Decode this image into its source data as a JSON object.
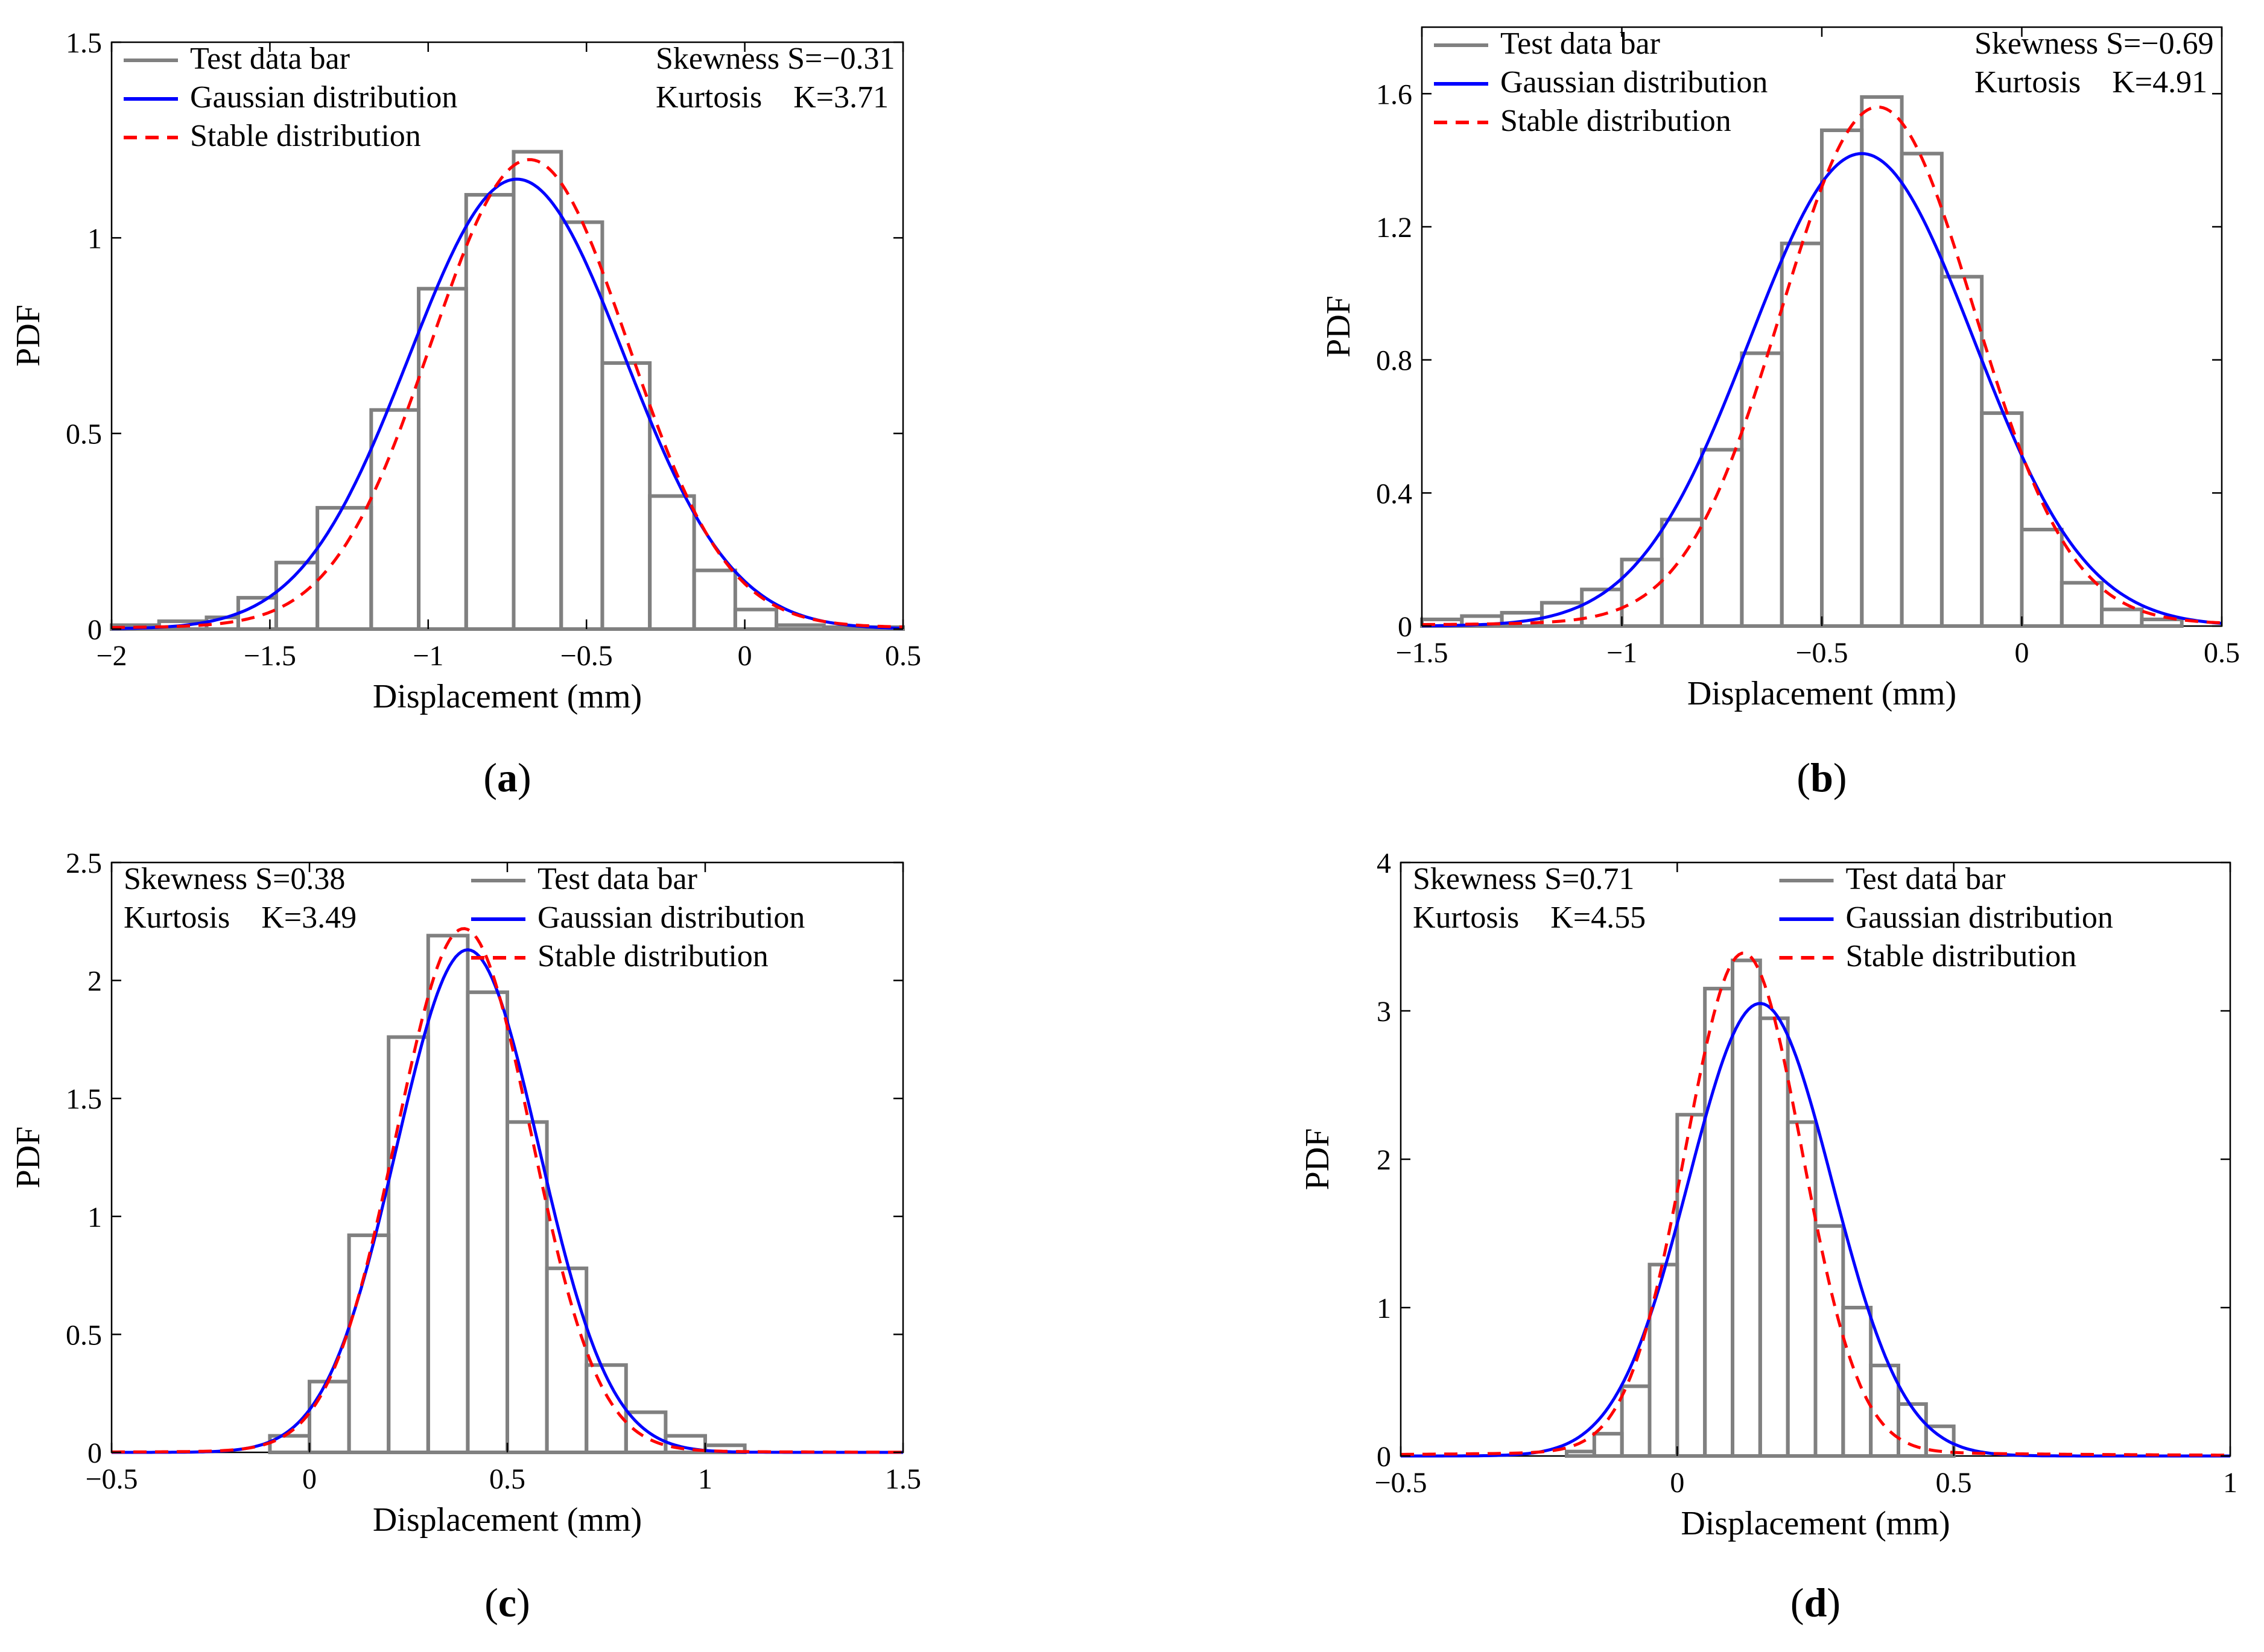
{
  "colors": {
    "bar": "#808080",
    "gaussian": "#0000ff",
    "stable": "#ff0000",
    "axis": "#000000",
    "grid": "#dddddd"
  },
  "chart_data": [
    {
      "id": "a",
      "caption_letter": "a",
      "type": "bar",
      "xlabel": "Displacement (mm)",
      "ylabel": "PDF",
      "xlim": [
        -2,
        0.5
      ],
      "ylim": [
        0,
        1.5
      ],
      "xticks": [
        -2,
        -1.5,
        -1,
        -0.5,
        0,
        0.5
      ],
      "xtick_labels": [
        "−2",
        "−1.5",
        "−1",
        "−0.5",
        "0",
        "0.5"
      ],
      "yticks": [
        0,
        0.5,
        1,
        1.5
      ],
      "ytick_labels": [
        "0",
        "0.5",
        "1",
        "1.5"
      ],
      "legend": {
        "entries": [
          "Test data bar",
          "Gaussian distribution",
          "Stable distribution"
        ],
        "position": "top-left"
      },
      "annotation": {
        "position": "top-right",
        "lines": [
          "Skewness S=−0.31",
          "Kurtosis K=3.71"
        ]
      },
      "bins": {
        "edges": [
          -2.0,
          -1.85,
          -1.7,
          -1.6,
          -1.48,
          -1.35,
          -1.18,
          -1.03,
          -0.88,
          -0.73,
          -0.58,
          -0.45,
          -0.3,
          -0.16,
          -0.03,
          0.1,
          0.25,
          0.5
        ],
        "heights": [
          0.01,
          0.02,
          0.03,
          0.08,
          0.17,
          0.31,
          0.56,
          0.87,
          1.11,
          1.22,
          1.04,
          0.68,
          0.34,
          0.15,
          0.05,
          0.01,
          0.005
        ]
      },
      "series": [
        {
          "name": "Gaussian distribution",
          "kind": "gaussian",
          "mean": -0.72,
          "sd": 0.34,
          "amp": 1.15
        },
        {
          "name": "Stable distribution",
          "kind": "stable",
          "mean": -0.68,
          "sd": 0.31,
          "amp": 1.2,
          "tail": 0.02,
          "tail_scale": 0.8
        }
      ]
    },
    {
      "id": "b",
      "caption_letter": "b",
      "type": "bar",
      "xlabel": "Displacement (mm)",
      "ylabel": "PDF",
      "xlim": [
        -1.5,
        0.5
      ],
      "ylim": [
        0,
        1.8
      ],
      "xticks": [
        -1.5,
        -1,
        -0.5,
        0,
        0.5
      ],
      "xtick_labels": [
        "−1.5",
        "−1",
        "−0.5",
        "0",
        "0.5"
      ],
      "yticks": [
        0,
        0.4,
        0.8,
        1.2,
        1.6
      ],
      "ytick_labels": [
        "0",
        "0.4",
        "0.8",
        "1.2",
        "1.6"
      ],
      "legend": {
        "entries": [
          "Test data bar",
          "Gaussian distribution",
          "Stable distribution"
        ],
        "position": "top-left"
      },
      "annotation": {
        "position": "top-right",
        "lines": [
          "Skewness S=−0.69",
          "Kurtosis K=4.91"
        ]
      },
      "bins": {
        "edges": [
          -1.5,
          -1.4,
          -1.3,
          -1.2,
          -1.1,
          -1.0,
          -0.9,
          -0.8,
          -0.7,
          -0.6,
          -0.5,
          -0.4,
          -0.3,
          -0.2,
          -0.1,
          0.0,
          0.1,
          0.2,
          0.3,
          0.4
        ],
        "heights": [
          0.02,
          0.03,
          0.04,
          0.07,
          0.11,
          0.2,
          0.32,
          0.53,
          0.82,
          1.15,
          1.49,
          1.59,
          1.42,
          1.05,
          0.64,
          0.29,
          0.13,
          0.05,
          0.02
        ]
      },
      "series": [
        {
          "name": "Gaussian distribution",
          "kind": "gaussian",
          "mean": -0.4,
          "sd": 0.28,
          "amp": 1.42
        },
        {
          "name": "Stable distribution",
          "kind": "stable",
          "mean": -0.36,
          "sd": 0.24,
          "amp": 1.56,
          "tail": 0.03,
          "tail_scale": 0.6
        }
      ]
    },
    {
      "id": "c",
      "caption_letter": "c",
      "type": "bar",
      "xlabel": "Displacement (mm)",
      "ylabel": "PDF",
      "xlim": [
        -0.5,
        1.5
      ],
      "ylim": [
        0,
        2.5
      ],
      "xticks": [
        -0.5,
        0,
        0.5,
        1,
        1.5
      ],
      "xtick_labels": [
        "−0.5",
        "0",
        "0.5",
        "1",
        "1.5"
      ],
      "yticks": [
        0,
        0.5,
        1,
        1.5,
        2,
        2.5
      ],
      "ytick_labels": [
        "0",
        "0.5",
        "1",
        "1.5",
        "2",
        "2.5"
      ],
      "legend": {
        "entries": [
          "Test data bar",
          "Gaussian distribution",
          "Stable distribution"
        ],
        "position": "top-right"
      },
      "annotation": {
        "position": "top-left",
        "lines": [
          "Skewness S=0.38",
          "Kurtosis K=3.49"
        ]
      },
      "bins": {
        "edges": [
          -0.1,
          0.0,
          0.1,
          0.2,
          0.3,
          0.4,
          0.5,
          0.6,
          0.7,
          0.8,
          0.9,
          1.0,
          1.1
        ],
        "heights": [
          0.07,
          0.3,
          0.92,
          1.76,
          2.19,
          1.95,
          1.4,
          0.78,
          0.37,
          0.17,
          0.07,
          0.03
        ]
      },
      "series": [
        {
          "name": "Gaussian distribution",
          "kind": "gaussian",
          "mean": 0.4,
          "sd": 0.18,
          "amp": 2.13
        },
        {
          "name": "Stable distribution",
          "kind": "stable",
          "mean": 0.39,
          "sd": 0.17,
          "amp": 2.22,
          "tail": 0.03,
          "tail_scale": 0.3
        }
      ]
    },
    {
      "id": "d",
      "caption_letter": "d",
      "type": "bar",
      "xlabel": "Displacement (mm)",
      "ylabel": "PDF",
      "xlim": [
        -0.5,
        1
      ],
      "ylim": [
        0,
        4
      ],
      "xticks": [
        -0.5,
        0,
        0.5,
        1
      ],
      "xtick_labels": [
        "−0.5",
        "0",
        "0.5",
        "1"
      ],
      "yticks": [
        0,
        1,
        2,
        3,
        4
      ],
      "ytick_labels": [
        "0",
        "1",
        "2",
        "3",
        "4"
      ],
      "legend": {
        "entries": [
          "Test data bar",
          "Gaussian distribution",
          "Stable distribution"
        ],
        "position": "top-right"
      },
      "annotation": {
        "position": "top-left",
        "lines": [
          "Skewness S=0.71",
          "Kurtosis K=4.55"
        ]
      },
      "bins": {
        "edges": [
          -0.2,
          -0.15,
          -0.1,
          -0.05,
          0.0,
          0.05,
          0.1,
          0.15,
          0.2,
          0.25,
          0.3,
          0.35,
          0.4,
          0.45,
          0.5
        ],
        "heights": [
          0.03,
          0.15,
          0.47,
          1.29,
          2.3,
          3.15,
          3.34,
          2.95,
          2.25,
          1.55,
          1.0,
          0.61,
          0.35,
          0.2
        ]
      },
      "series": [
        {
          "name": "Gaussian distribution",
          "kind": "gaussian",
          "mean": 0.15,
          "sd": 0.13,
          "amp": 3.05
        },
        {
          "name": "Stable distribution",
          "kind": "stable",
          "mean": 0.12,
          "sd": 0.105,
          "amp": 3.39,
          "tail": 0.05,
          "tail_scale": 0.4
        }
      ]
    }
  ]
}
